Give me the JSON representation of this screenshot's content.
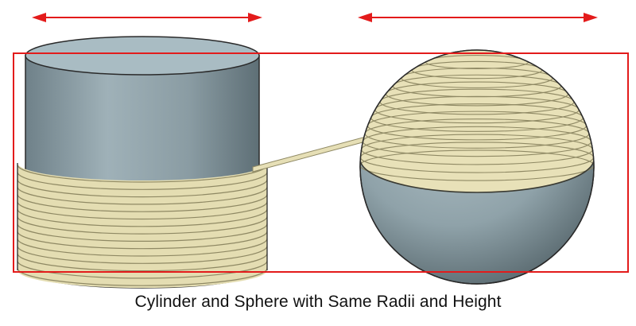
{
  "caption": "Cylinder and Sphere with Same Radii and Height",
  "figures": [
    {
      "name": "cylinder",
      "shape": "cylinder",
      "wrapped_with": "string"
    },
    {
      "name": "sphere",
      "shape": "sphere",
      "wrapped_with": "string"
    }
  ],
  "annotations": {
    "width_arrows": 2,
    "bounding_box": "equal height frame"
  },
  "colors": {
    "accent": "#e31b1b",
    "body": "#93a6ad",
    "body_dark": "#5e6f76",
    "string": "#e9e2b8",
    "string_shadow": "#9c9670",
    "outline": "#2a2a2a"
  }
}
